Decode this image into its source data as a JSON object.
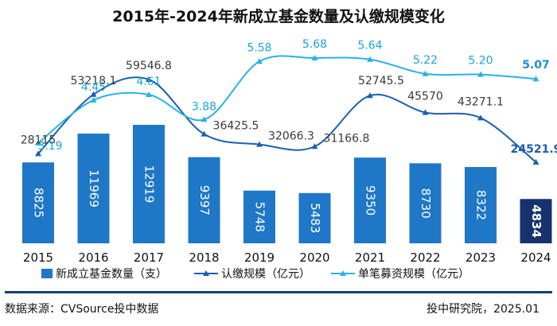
{
  "chart_data": {
    "type": "bar+line",
    "title": "2015年-2024年新成立基金数量及认缴规模变化",
    "categories": [
      "2015",
      "2016",
      "2017",
      "2018",
      "2019",
      "2020",
      "2021",
      "2022",
      "2023",
      "2024"
    ],
    "series": [
      {
        "name": "新成立基金数量（支）",
        "type": "bar",
        "values": [
          8825,
          11969,
          12919,
          9397,
          5748,
          5483,
          9350,
          8730,
          8322,
          4834
        ],
        "labels": [
          "8825",
          "11969",
          "12919",
          "9397",
          "5748",
          "5483",
          "9350",
          "8730",
          "8322",
          "4834"
        ],
        "color": "#1f77c8",
        "highlight_color": "#17336e"
      },
      {
        "name": "认缴规模（亿元）",
        "type": "line",
        "values": [
          28115,
          53218.1,
          59546.8,
          36425.5,
          32066.3,
          31166.8,
          52745.5,
          45570,
          43271.1,
          24521.9
        ],
        "labels": [
          "28115",
          "53218.1",
          "59546.8",
          "36425.5",
          "32066.3",
          "31166.8",
          "52745.5",
          "45570",
          "43271.1",
          "24521.9"
        ],
        "color": "#1b5fb0"
      },
      {
        "name": "单笔募资规模（亿元）",
        "type": "line",
        "values": [
          3.19,
          4.45,
          4.61,
          3.88,
          5.58,
          5.68,
          5.64,
          5.22,
          5.2,
          5.07
        ],
        "labels": [
          "3.19",
          "4.45",
          "4.61",
          "3.88",
          "5.58",
          "5.68",
          "5.64",
          "5.22",
          "5.20",
          "5.07"
        ],
        "color": "#2ab0e8"
      }
    ],
    "xlabel": "",
    "ylabel": "",
    "legend_position": "bottom"
  },
  "footer": {
    "source": "数据来源：CVSource投中数据",
    "credit": "投中研究院，2025.01"
  }
}
